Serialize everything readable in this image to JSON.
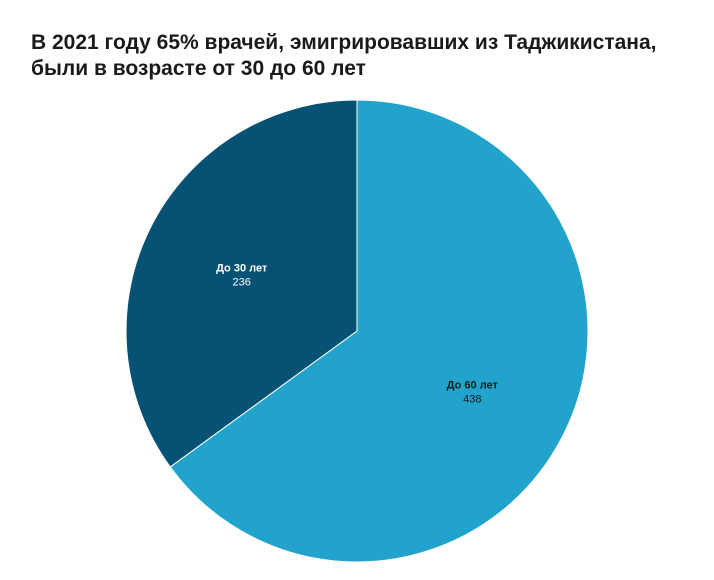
{
  "chart_data": {
    "type": "pie",
    "title_lines": [
      "В 2021 году 65% врачей, эмигрировавших из Таджикистана,",
      "были в возрасте от 30 до 60 лет"
    ],
    "slices": [
      {
        "label": "До 60 лет",
        "value": 438,
        "value_text": "438",
        "color": "#22a3cb",
        "label_color": "#1a1a1a"
      },
      {
        "label": "До 30 лет",
        "value": 236,
        "value_text": "236",
        "color": "#065275",
        "label_color": "#ffffff"
      }
    ],
    "start_angle": "top",
    "direction": "clockwise"
  }
}
